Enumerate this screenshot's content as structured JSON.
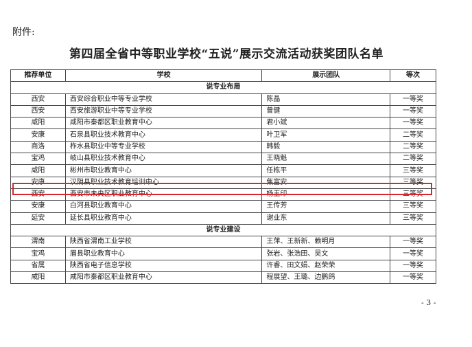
{
  "attachment_label": "附件:",
  "title": "第四届全省中等职业学校“五说”展示交流活动获奖团队名单",
  "headers": [
    "推荐单位",
    "学校",
    "展示团队",
    "等次"
  ],
  "sections": [
    {
      "name": "说专业布局",
      "rows": [
        [
          "西安",
          "西安综合职业中等专业学校",
          "陈晶",
          "一等奖"
        ],
        [
          "西安",
          "西安旅游职业中等专业学校",
          "曾健",
          "一等奖"
        ],
        [
          "咸阳",
          "咸阳市秦都区职业教育中心",
          "君小斌",
          "一等奖"
        ],
        [
          "安康",
          "石泉县职业技术教育中心",
          "叶卫军",
          "二等奖"
        ],
        [
          "商洛",
          "柞水县职业中等专业学校",
          "韩毅",
          "二等奖"
        ],
        [
          "宝鸡",
          "岐山县职业技术教育中心",
          "王晓魁",
          "二等奖"
        ],
        [
          "咸阳",
          "彬州市职业教育中心",
          "任栋平",
          "三等奖"
        ],
        [
          "安康",
          "汉阴县职业技术教育培训中心",
          "焦富安",
          "三等奖"
        ],
        [
          "西安",
          "西安市未央区职业教育中心",
          "杨玉印",
          "三等奖"
        ],
        [
          "安康",
          "白河县职业教育中心",
          "王传芳",
          "三等奖"
        ],
        [
          "延安",
          "延长县职业教育中心",
          "谢业东",
          "三等奖"
        ]
      ]
    },
    {
      "name": "说专业建设",
      "rows": [
        [
          "渭南",
          "陕西省渭南工业学校",
          "王萍、王新新、赖明月",
          "一等奖"
        ],
        [
          "宝鸡",
          "眉县职业教育中心",
          "张岩、张浩田、吴文",
          "一等奖"
        ],
        [
          "省属",
          "陕西省电子信息学校",
          "许睿、田文娟、赵荣荣",
          "一等奖"
        ],
        [
          "咸阳",
          "咸阳市秦都区职业教育中心",
          "程展望、王璐、边鹏鸽",
          "一等奖"
        ]
      ]
    }
  ],
  "highlight_color": "#d8262c",
  "page_number": "- 3 -"
}
